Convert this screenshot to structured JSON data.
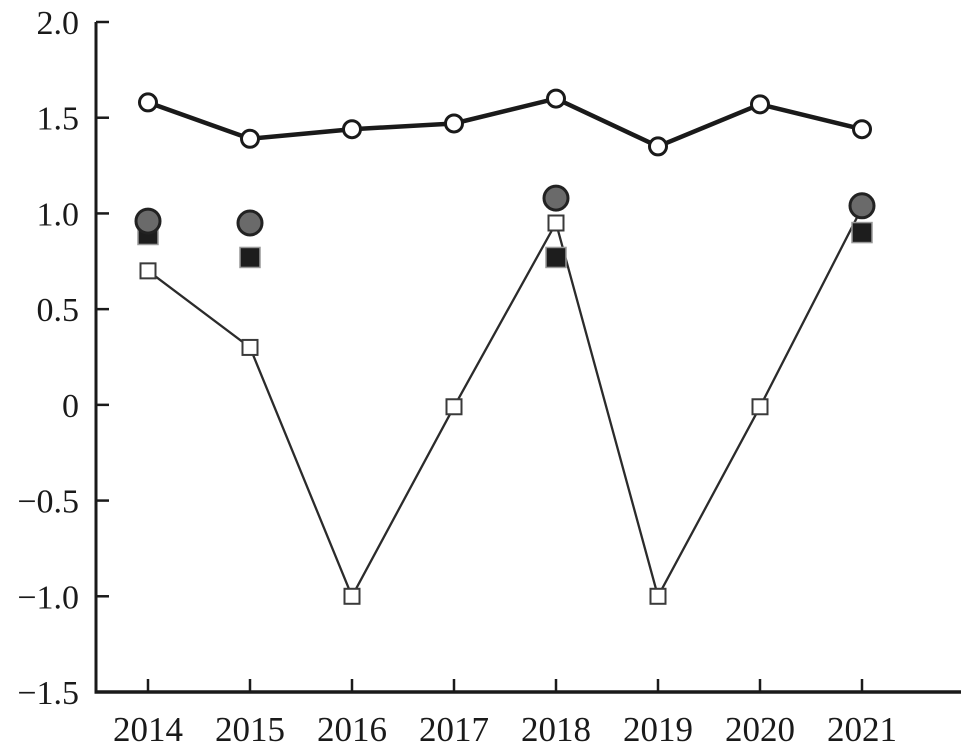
{
  "figure": {
    "background": "#ffffff",
    "axis_color": "#1a1a1a"
  },
  "chart_data": {
    "type": "line",
    "title": "",
    "xlabel": "",
    "ylabel": "",
    "grid": false,
    "legend": "none",
    "x": [
      2014,
      2015,
      2016,
      2017,
      2018,
      2019,
      2020,
      2021
    ],
    "x_tick_labels": [
      "2014",
      "2015",
      "2016",
      "2017",
      "2018",
      "2019",
      "2020",
      "2021"
    ],
    "xlim": [
      2013.5,
      2022.0
    ],
    "y_ticks": [
      2.0,
      1.5,
      1.0,
      0.5,
      0,
      -0.5,
      -1.0,
      -1.5
    ],
    "y_tick_labels": [
      "2.0",
      "1.5",
      "1.0",
      "0.5",
      "0",
      "−0.5",
      "−1.0",
      "−1.5"
    ],
    "ylim": [
      -1.5,
      2.0
    ],
    "series": [
      {
        "name": "open-square-line",
        "type": "line",
        "marker": "open-square",
        "color": "#2b2b2b",
        "marker_fill": "#ffffff",
        "marker_edge": "#3a3a3a",
        "line_width": 2.3,
        "x": [
          2014,
          2015,
          2016,
          2017,
          2018,
          2019,
          2020,
          2021
        ],
        "values": [
          0.7,
          0.3,
          -1.0,
          -0.01,
          0.95,
          -1.0,
          -0.01,
          1.03
        ],
        "markers_shown": [
          true,
          true,
          true,
          true,
          true,
          true,
          true,
          false
        ]
      },
      {
        "name": "black-square-scatter",
        "type": "scatter",
        "marker": "filled-square",
        "color": "#1d1d1d",
        "marker_edge": "#999999",
        "x": [
          2014,
          2015,
          2018,
          2021
        ],
        "values": [
          0.89,
          0.77,
          0.77,
          0.9
        ]
      },
      {
        "name": "gray-circle-scatter",
        "type": "scatter",
        "marker": "filled-circle",
        "color": "#6a6a6a",
        "marker_edge": "#222222",
        "x": [
          2014,
          2015,
          2018,
          2021
        ],
        "values": [
          0.96,
          0.95,
          1.08,
          1.04
        ]
      },
      {
        "name": "open-circle-line",
        "type": "line",
        "marker": "open-circle",
        "color": "#1a1a1a",
        "marker_fill": "#ffffff",
        "marker_edge": "#1a1a1a",
        "line_width": 4.5,
        "x": [
          2014,
          2015,
          2016,
          2017,
          2018,
          2019,
          2020,
          2021
        ],
        "values": [
          1.58,
          1.39,
          1.44,
          1.47,
          1.6,
          1.35,
          1.57,
          1.44
        ],
        "markers_shown": [
          true,
          true,
          true,
          true,
          true,
          true,
          true,
          true
        ]
      }
    ]
  }
}
